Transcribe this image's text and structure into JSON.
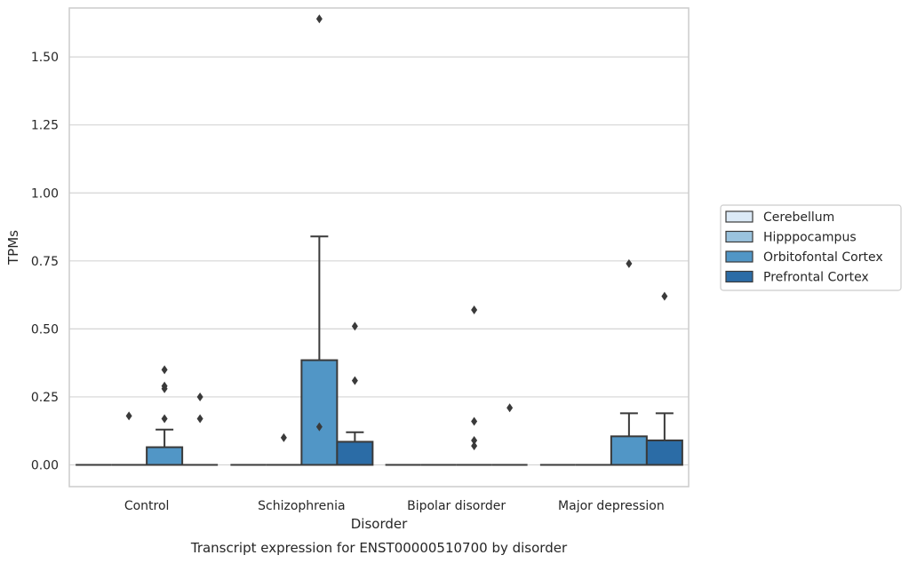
{
  "chart_data": {
    "type": "box",
    "title": "Transcript expression for ENST00000510700 by disorder",
    "xlabel": "Disorder",
    "ylabel": "TPMs",
    "ylim": [
      -0.08,
      1.68
    ],
    "yticks": [
      "0.00",
      "0.25",
      "0.50",
      "0.75",
      "1.00",
      "1.25",
      "1.50"
    ],
    "grid": true,
    "legend_position": "right",
    "categories": [
      "Control",
      "Schizophrenia",
      "Bipolar disorder",
      "Major depression"
    ],
    "series": [
      {
        "name": "Cerebellum",
        "color": "#dbe9f6",
        "boxes": [
          {
            "q1": 0,
            "median": 0,
            "q3": 0,
            "whisker_low": 0,
            "whisker_high": 0,
            "outliers": []
          },
          {
            "q1": 0,
            "median": 0,
            "q3": 0,
            "whisker_low": 0,
            "whisker_high": 0,
            "outliers": []
          },
          {
            "q1": 0,
            "median": 0,
            "q3": 0,
            "whisker_low": 0,
            "whisker_high": 0,
            "outliers": []
          },
          {
            "q1": 0,
            "median": 0,
            "q3": 0,
            "whisker_low": 0,
            "whisker_high": 0,
            "outliers": []
          }
        ]
      },
      {
        "name": "Hipppocampus",
        "color": "#9ac3de",
        "boxes": [
          {
            "q1": 0,
            "median": 0,
            "q3": 0,
            "whisker_low": 0,
            "whisker_high": 0,
            "outliers": [
              0.18
            ]
          },
          {
            "q1": 0,
            "median": 0,
            "q3": 0,
            "whisker_low": 0,
            "whisker_high": 0,
            "outliers": [
              0.1
            ]
          },
          {
            "q1": 0,
            "median": 0,
            "q3": 0,
            "whisker_low": 0,
            "whisker_high": 0,
            "outliers": []
          },
          {
            "q1": 0,
            "median": 0,
            "q3": 0,
            "whisker_low": 0,
            "whisker_high": 0,
            "outliers": []
          }
        ]
      },
      {
        "name": "Orbitofontal Cortex",
        "color": "#5196c6",
        "boxes": [
          {
            "q1": 0,
            "median": 0,
            "q3": 0.065,
            "whisker_low": 0,
            "whisker_high": 0.13,
            "outliers": [
              0.17,
              0.28,
              0.29,
              0.35
            ]
          },
          {
            "q1": 0,
            "median": 0,
            "q3": 0.385,
            "whisker_low": 0,
            "whisker_high": 0.84,
            "outliers": [
              0.14,
              1.64
            ]
          },
          {
            "q1": 0,
            "median": 0,
            "q3": 0,
            "whisker_low": 0,
            "whisker_high": 0,
            "outliers": [
              0.07,
              0.09,
              0.16,
              0.57
            ]
          },
          {
            "q1": 0,
            "median": 0,
            "q3": 0.105,
            "whisker_low": 0,
            "whisker_high": 0.19,
            "outliers": [
              0.74
            ]
          }
        ]
      },
      {
        "name": "Prefrontal Cortex",
        "color": "#2b6ca6",
        "boxes": [
          {
            "q1": 0,
            "median": 0,
            "q3": 0,
            "whisker_low": 0,
            "whisker_high": 0,
            "outliers": [
              0.17,
              0.25
            ]
          },
          {
            "q1": 0,
            "median": 0,
            "q3": 0.085,
            "whisker_low": 0,
            "whisker_high": 0.12,
            "outliers": [
              0.31,
              0.51
            ]
          },
          {
            "q1": 0,
            "median": 0,
            "q3": 0,
            "whisker_low": 0,
            "whisker_high": 0,
            "outliers": [
              0.21
            ]
          },
          {
            "q1": 0,
            "median": 0,
            "q3": 0.09,
            "whisker_low": 0,
            "whisker_high": 0.19,
            "outliers": [
              0.62
            ]
          }
        ]
      }
    ]
  }
}
